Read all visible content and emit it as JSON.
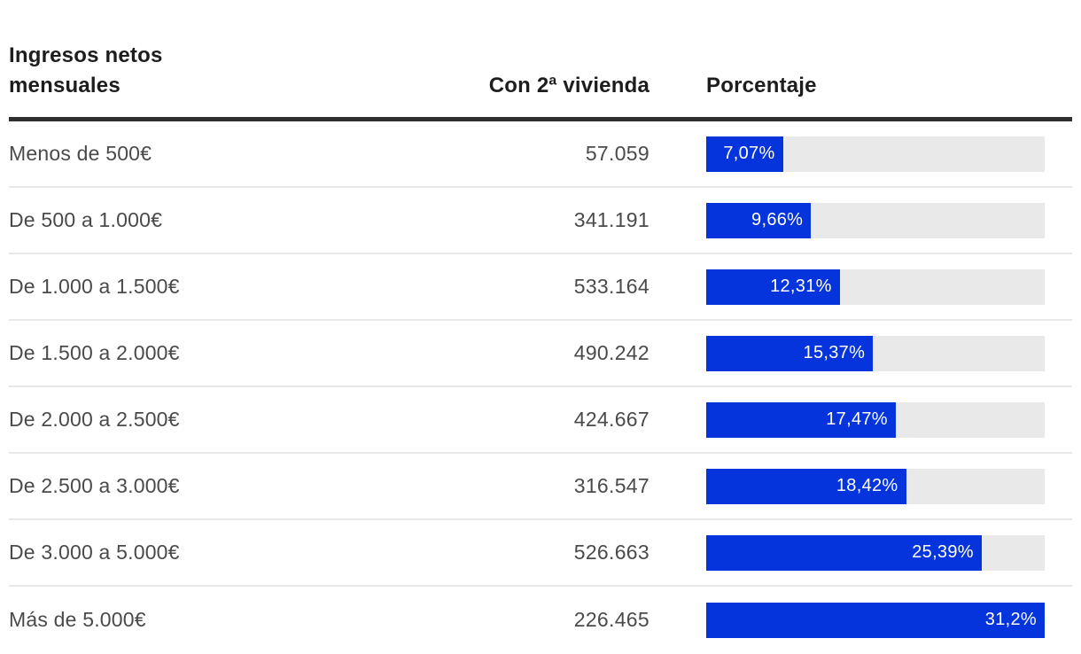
{
  "header": {
    "col1_line1": "Ingresos netos",
    "col1_line2": "mensuales",
    "col2": "Con 2ª vivienda",
    "col3": "Porcentaje"
  },
  "colors": {
    "bar_fill": "#0534dc",
    "bar_track": "#e9e9e9",
    "header_rule": "#2f2f2f",
    "row_divider": "#e8e8e8",
    "header_text": "#1d1d1d",
    "body_text": "#4a4a4a",
    "bar_label_text": "#ffffff"
  },
  "chart_data": {
    "type": "bar",
    "orientation": "horizontal",
    "title": "",
    "xlabel": "Porcentaje",
    "ylabel": "Ingresos netos mensuales",
    "xlim": [
      0,
      31.2
    ],
    "grid": false,
    "legend": "none",
    "categories": [
      "Menos de 500€",
      "De 500 a 1.000€",
      "De 1.000 a 1.500€",
      "De 1.500 a 2.000€",
      "De 2.000 a 2.500€",
      "De 2.500 a 3.000€",
      "De 3.000 a 5.000€",
      "Más de 5.000€"
    ],
    "series": [
      {
        "name": "Con 2ª vivienda",
        "values": [
          57059,
          341191,
          533164,
          490242,
          424667,
          316547,
          526663,
          226465
        ],
        "display": [
          "57.059",
          "341.191",
          "533.164",
          "490.242",
          "424.667",
          "316.547",
          "526.663",
          "226.465"
        ]
      },
      {
        "name": "Porcentaje",
        "values": [
          7.07,
          9.66,
          12.31,
          15.37,
          17.47,
          18.42,
          25.39,
          31.2
        ],
        "display": [
          "7,07%",
          "9,66%",
          "12,31%",
          "15,37%",
          "17,47%",
          "18,42%",
          "25,39%",
          "31,2%"
        ]
      }
    ]
  }
}
